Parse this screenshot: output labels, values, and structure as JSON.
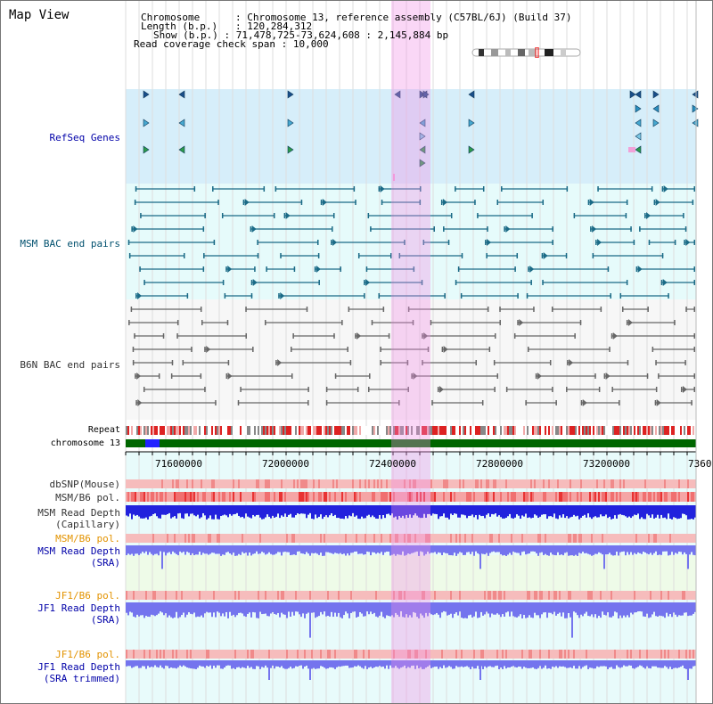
{
  "page": {
    "title": "Map View",
    "header": {
      "chromosome_key": "Chromosome",
      "chromosome_value": "Chromosome 13, reference assembly (C57BL/6J) (Build 37)",
      "length_key": "Length (b.p.)",
      "length_value": "120,284,312",
      "show_key": "Show (b.p.)",
      "show_value": "71,478,725-73,624,608 : 2,145,884 bp",
      "span_key": "Read coverage check span",
      "span_value": "10,000"
    }
  },
  "tracks": {
    "refseq": "RefSeq Genes",
    "msm_bac": "MSM BAC end pairs",
    "b6n_bac": "B6N BAC end pairs",
    "repeat": "Repeat",
    "chromosome": "chromosome 13",
    "dbsnp": "dbSNP(Mouse)",
    "msm_pol": "MSM/B6 pol.",
    "msm_depth_cap_1": "MSM Read Depth",
    "msm_depth_cap_2": "(Capillary)",
    "msm_pol_sra": "MSM/B6 pol.",
    "msm_depth_sra_1": "MSM Read Depth",
    "msm_depth_sra_2": "(SRA)",
    "jf1_pol": "JF1/B6 pol.",
    "jf1_depth_1": "JF1 Read Depth",
    "jf1_depth_2": "(SRA)",
    "jf1_pol_trim": "JF1/B6 pol.",
    "jf1_trim_1": "JF1 Read Depth",
    "jf1_trim_2": "(SRA trimmed)"
  },
  "axis": {
    "ticks": [
      "71600000",
      "72000000",
      "72400000",
      "72800000",
      "73200000",
      "7360"
    ]
  },
  "colors": {
    "refseq_bg": "#d6eefa",
    "bac_bg": "#e6fbfb",
    "highlight": "#f6c6ee",
    "chromosome_green": "#006600",
    "depth_blue": "#2222dd",
    "sra_blue": "#7474ee",
    "pol_red": "#ee3333"
  }
}
